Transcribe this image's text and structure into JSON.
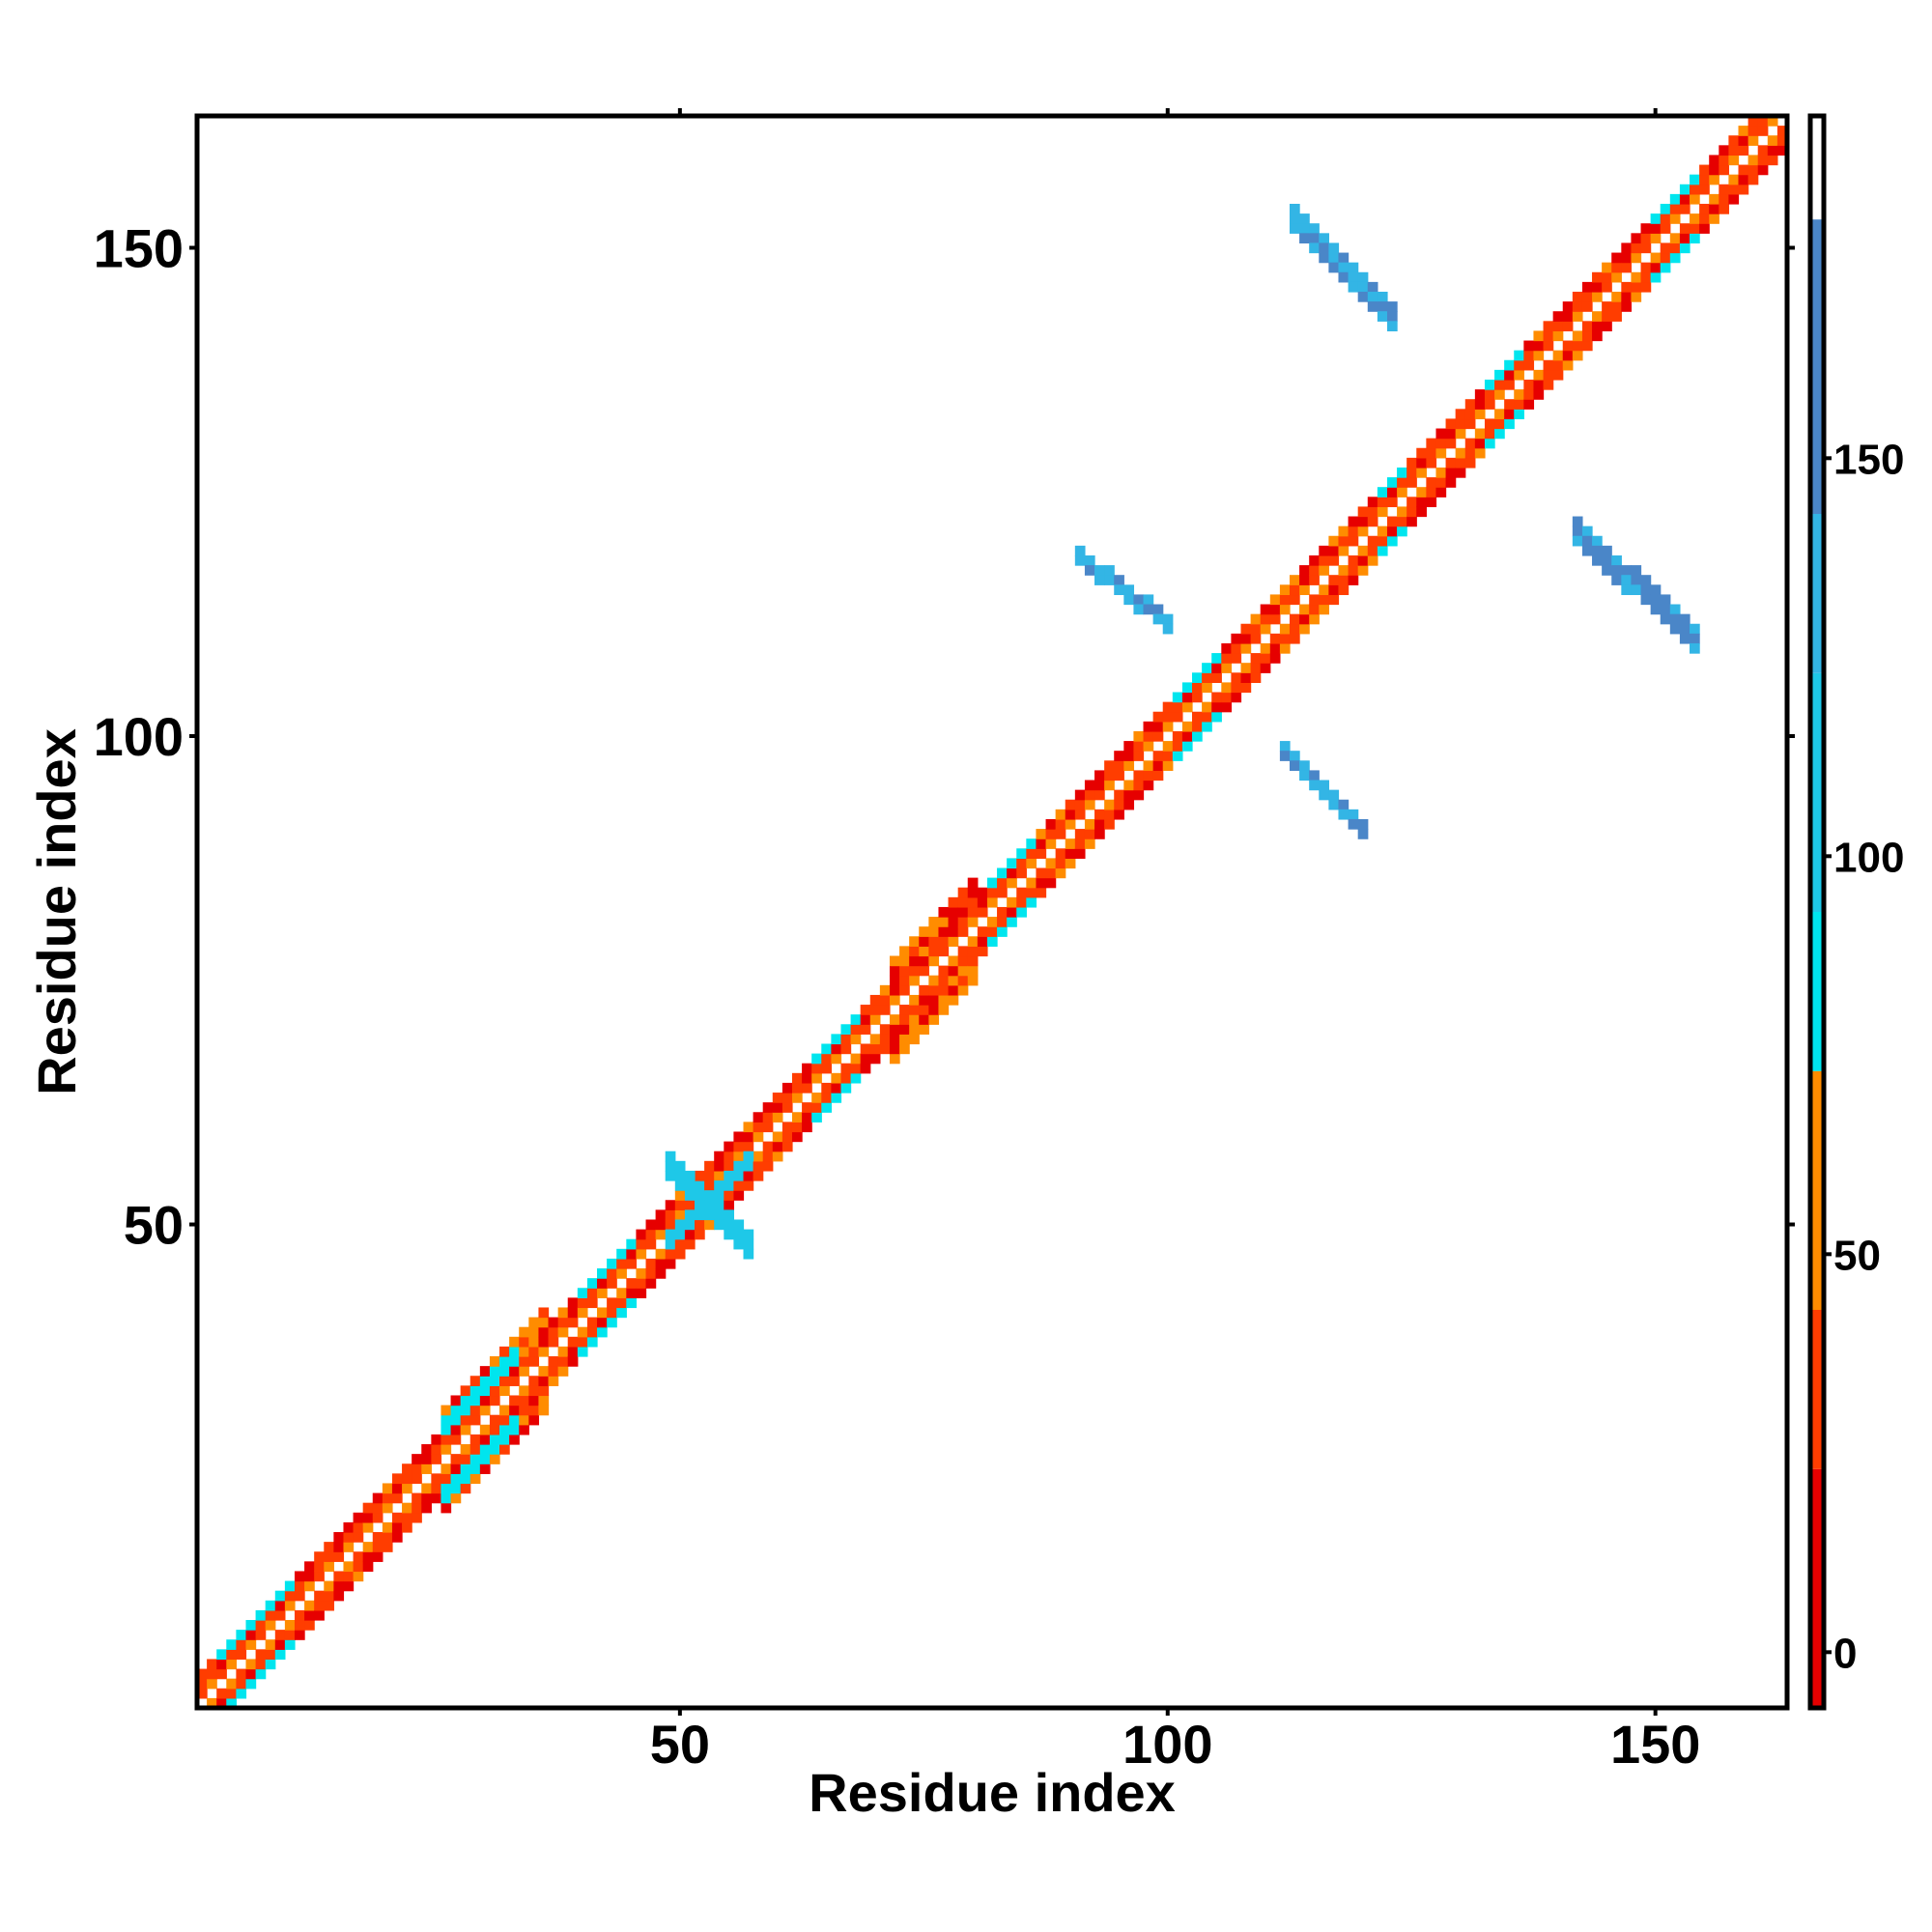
{
  "chart_data": {
    "type": "heatmap",
    "title": "",
    "xlabel": "Residue index",
    "ylabel": "Residue index",
    "xlim": [
      1,
      163
    ],
    "ylim": [
      1,
      163
    ],
    "x_ticks": [
      50,
      100,
      150
    ],
    "y_ticks": [
      50,
      100,
      150
    ],
    "grid": false,
    "colorbar": {
      "position": "right",
      "ticks": [
        0,
        50,
        100,
        150
      ],
      "range": [
        -7,
        193
      ],
      "bands": [
        {
          "from": -7,
          "to": 23,
          "color": "#e60000"
        },
        {
          "from": 23,
          "to": 43,
          "color": "#ff3d00"
        },
        {
          "from": 43,
          "to": 73,
          "color": "#ff8c00"
        },
        {
          "from": 73,
          "to": 93,
          "color": "#00e5ee"
        },
        {
          "from": 93,
          "to": 123,
          "color": "#1ec8e8"
        },
        {
          "from": 123,
          "to": 143,
          "color": "#33b5e5"
        },
        {
          "from": 143,
          "to": 180,
          "color": "#4a86c8"
        },
        {
          "from": 180,
          "to": 193,
          "color": "#ffffff"
        }
      ]
    },
    "diagonal": {
      "from": 1,
      "to": 163,
      "half_width": 3,
      "palette": [
        "#e60000",
        "#ff3d00",
        "#ff8c00",
        "#00e5ee"
      ],
      "helix_ranges": [
        [
          3,
          10
        ],
        [
          26,
          33
        ],
        [
          40,
          45
        ],
        [
          64,
          68
        ],
        [
          82,
          86
        ],
        [
          101,
          105
        ],
        [
          122,
          124
        ],
        [
          133,
          136
        ],
        [
          150,
          154
        ]
      ],
      "wide_ranges": [
        [
          26,
          36
        ],
        [
          72,
          80
        ]
      ]
    },
    "off_diagonal": [
      {
        "x_range": [
          113,
          123
        ],
        "y_start": 154,
        "y_end": 144,
        "width": 3,
        "value": 150
      },
      {
        "x_range": [
          142,
          154
        ],
        "y_start": 122,
        "y_end": 111,
        "width": 3,
        "value": 150
      },
      {
        "x_range": [
          91,
          100
        ],
        "y_start": 119,
        "y_end": 112,
        "width": 2,
        "value": 150
      },
      {
        "x_range": [
          112,
          120
        ],
        "y_start": 99,
        "y_end": 91,
        "width": 2,
        "value": 150
      },
      {
        "x_range": [
          49,
          57
        ],
        "y_start": 57,
        "y_end": 49,
        "width": 3,
        "value": 120
      },
      {
        "x_range": [
          49,
          57
        ],
        "y_start": 49,
        "y_end": 57,
        "width": 2,
        "value": 120
      }
    ]
  }
}
